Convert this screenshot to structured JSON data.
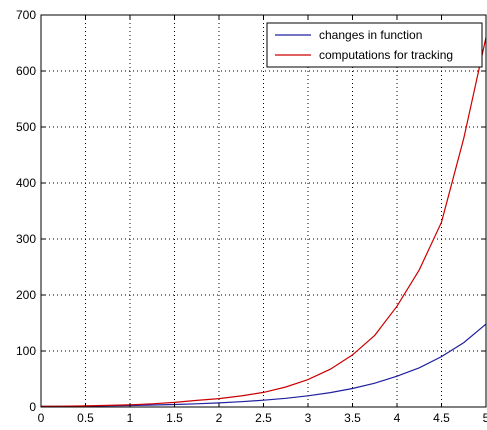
{
  "chart_data": {
    "type": "line",
    "title": "",
    "xlabel": "",
    "ylabel": "",
    "xlim": [
      0,
      5
    ],
    "ylim": [
      0,
      700
    ],
    "x_ticks": [
      0,
      0.5,
      1,
      1.5,
      2,
      2.5,
      3,
      3.5,
      4,
      4.5,
      5
    ],
    "x_tick_labels": [
      "0",
      "0.5",
      "1",
      "1.5",
      "2",
      "2.5",
      "3",
      "3.5",
      "4",
      "4.5",
      "5"
    ],
    "y_ticks": [
      0,
      100,
      200,
      300,
      400,
      500,
      600,
      700
    ],
    "y_tick_labels": [
      "0",
      "100",
      "200",
      "300",
      "400",
      "500",
      "600",
      "700"
    ],
    "grid": true,
    "grid_style": "dotted",
    "legend_position": "top-right",
    "x": [
      0,
      0.25,
      0.5,
      0.75,
      1,
      1.25,
      1.5,
      1.75,
      2,
      2.25,
      2.5,
      2.75,
      3,
      3.25,
      3.5,
      3.75,
      4,
      4.25,
      4.5,
      4.75,
      5
    ],
    "series": [
      {
        "name": "changes in function",
        "color": "#2020a0",
        "values": [
          1,
          1.3,
          1.6,
          2.1,
          2.7,
          3.5,
          4.5,
          5.8,
          7.4,
          9.5,
          12.2,
          15.6,
          20,
          25.8,
          33,
          42.5,
          55,
          70,
          90,
          115,
          148
        ]
      },
      {
        "name": "computations for tracking",
        "color": "#cc0000",
        "values": [
          1,
          1.4,
          2,
          2.9,
          4,
          5.8,
          8.2,
          11.8,
          15,
          19.8,
          26,
          35.7,
          49,
          67.5,
          93,
          128,
          180,
          245,
          330,
          480,
          660
        ]
      }
    ]
  }
}
